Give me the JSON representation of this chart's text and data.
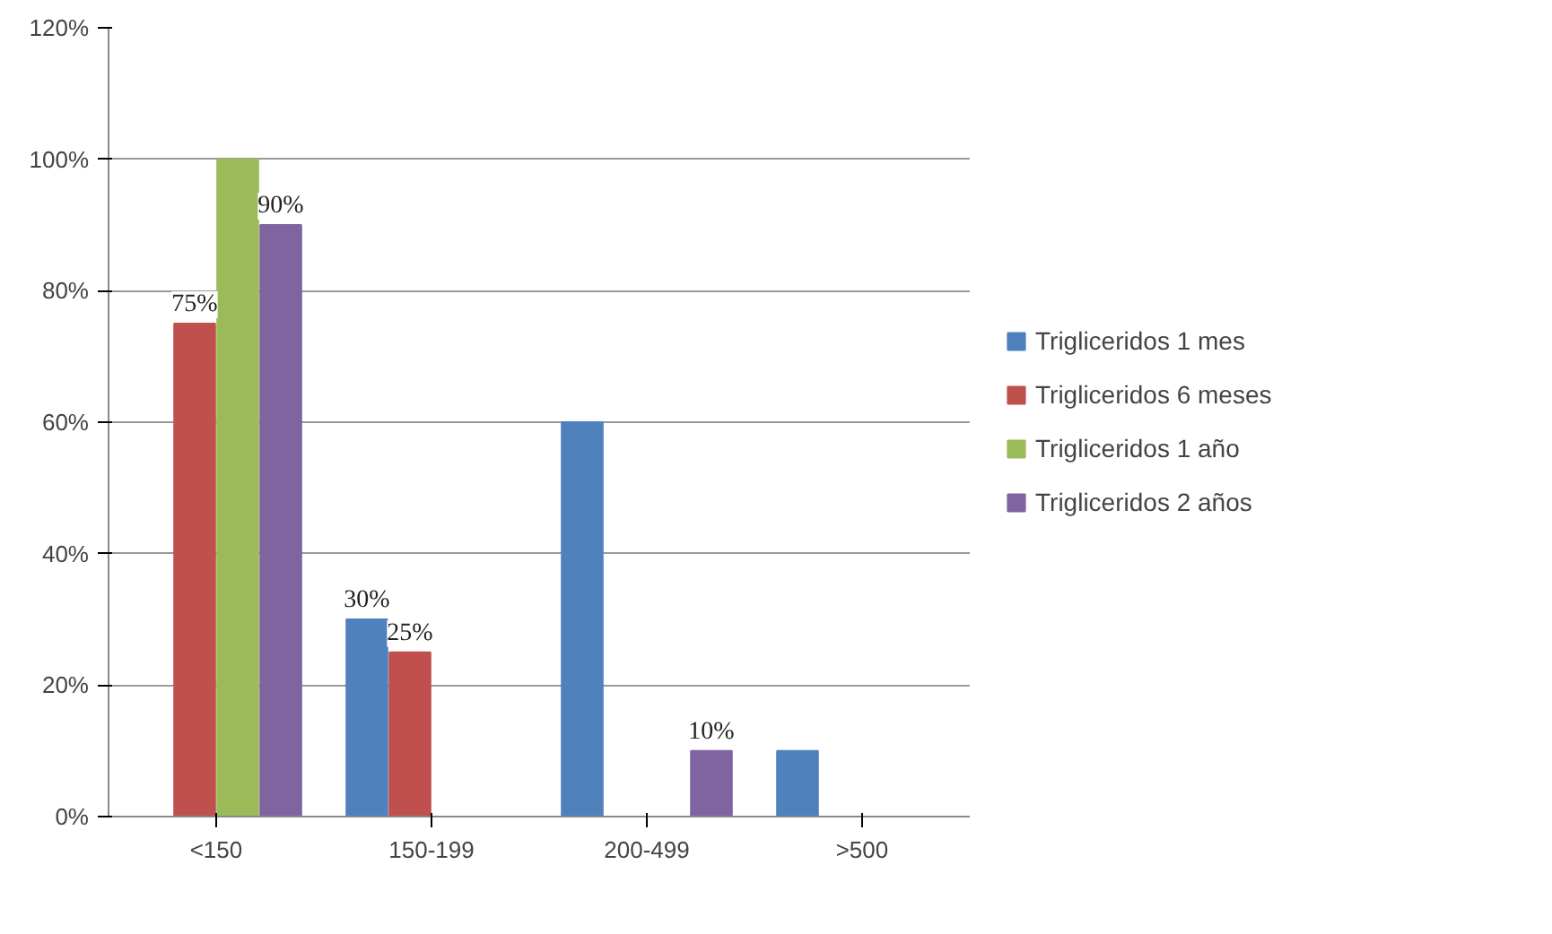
{
  "chart_data": {
    "type": "bar",
    "categories": [
      "<150",
      "150-199",
      "200-499",
      ">500"
    ],
    "series": [
      {
        "name": "Trigliceridos 1 mes",
        "color": "#4f81bd",
        "values": [
          0,
          30,
          60,
          10
        ],
        "value_labels": [
          null,
          "30%",
          null,
          null
        ]
      },
      {
        "name": "Trigliceridos 6 meses",
        "color": "#c0504d",
        "values": [
          75,
          25,
          0,
          0
        ],
        "value_labels": [
          "75%",
          "25%",
          null,
          null
        ]
      },
      {
        "name": "Trigliceridos 1 año",
        "color": "#9bbb59",
        "values": [
          100,
          0,
          0,
          0
        ],
        "value_labels": [
          null,
          null,
          null,
          null
        ]
      },
      {
        "name": "Trigliceridos 2 años",
        "color": "#8064a2",
        "values": [
          90,
          0,
          10,
          0
        ],
        "value_labels": [
          "90%",
          null,
          "10%",
          null
        ]
      }
    ],
    "ylim": [
      0,
      120
    ],
    "yticks": [
      {
        "value": 0,
        "label": "0%"
      },
      {
        "value": 20,
        "label": "20%"
      },
      {
        "value": 40,
        "label": "40%"
      },
      {
        "value": 60,
        "label": "60%"
      },
      {
        "value": 80,
        "label": "80%"
      },
      {
        "value": 100,
        "label": "100%"
      },
      {
        "value": 120,
        "label": "120%"
      }
    ],
    "grid": "y",
    "legend": "right"
  }
}
